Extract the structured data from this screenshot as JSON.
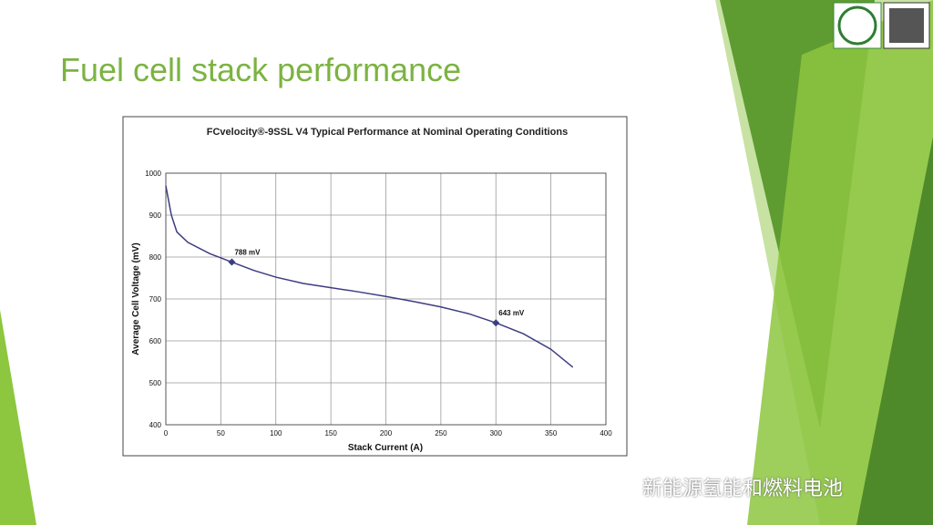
{
  "slide_title": "Fuel cell stack performance",
  "watermark": "新能源氢能和燃料电池",
  "chart_data": {
    "type": "line",
    "title": "FCvelocity®-9SSL V4  Typical Performance at Nominal Operating Conditions",
    "x_label": "Stack Current (A)",
    "y_label": "Average Cell Voltage (mV)",
    "x": [
      0,
      5,
      10,
      20,
      40,
      60,
      80,
      100,
      125,
      150,
      175,
      200,
      225,
      250,
      275,
      300,
      325,
      350,
      370
    ],
    "values": [
      970,
      900,
      860,
      835,
      808,
      788,
      768,
      752,
      737,
      727,
      717,
      706,
      694,
      681,
      665,
      643,
      617,
      580,
      537
    ],
    "color": "#3d3d82",
    "xlim": [
      0,
      400
    ],
    "xticks": [
      0,
      50,
      100,
      150,
      200,
      250,
      300,
      350,
      400
    ],
    "ylim": [
      400,
      1000
    ],
    "yticks": [
      400,
      500,
      600,
      700,
      800,
      900,
      1000
    ],
    "grid": true,
    "annotations": [
      {
        "x": 60,
        "y": 788,
        "label": "788 mV"
      },
      {
        "x": 300,
        "y": 643,
        "label": "643 mV"
      }
    ]
  }
}
